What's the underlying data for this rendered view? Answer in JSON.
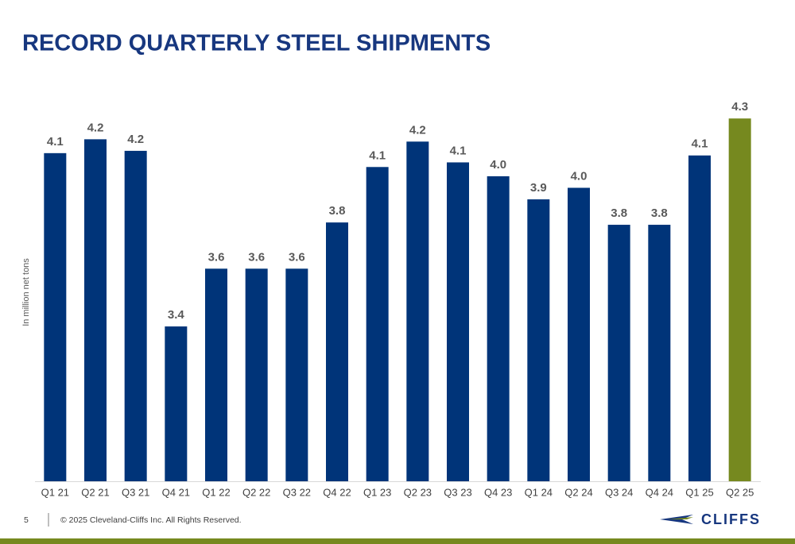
{
  "chart_data": {
    "type": "bar",
    "title": "RECORD QUARTERLY STEEL SHIPMENTS",
    "y_label": "In million net tons",
    "categories": [
      "Q1 21",
      "Q2 21",
      "Q3 21",
      "Q4 21",
      "Q1 22",
      "Q2 22",
      "Q3 22",
      "Q4 22",
      "Q1 23",
      "Q2 23",
      "Q3 23",
      "Q4 23",
      "Q1 24",
      "Q2 24",
      "Q3 24",
      "Q4 24",
      "Q1 25",
      "Q2 25"
    ],
    "values": [
      4.15,
      4.21,
      4.16,
      3.4,
      3.65,
      3.65,
      3.65,
      3.85,
      4.09,
      4.2,
      4.11,
      4.05,
      3.95,
      4.0,
      3.84,
      3.84,
      4.14,
      4.3
    ],
    "value_labels": [
      "4.1",
      "4.2",
      "4.2",
      "3.4",
      "3.6",
      "3.6",
      "3.6",
      "3.8",
      "4.1",
      "4.2",
      "4.1",
      "4.0",
      "3.9",
      "4.0",
      "3.8",
      "3.8",
      "4.1",
      "4.3"
    ],
    "colors": [
      "#003479",
      "#003479",
      "#003479",
      "#003479",
      "#003479",
      "#003479",
      "#003479",
      "#003479",
      "#003479",
      "#003479",
      "#003479",
      "#003479",
      "#003479",
      "#003479",
      "#003479",
      "#003479",
      "#003479",
      "#76891f"
    ],
    "ylim": [
      2.73,
      4.5
    ]
  },
  "footer": {
    "page_number": "5",
    "copyright": "© 2025 Cleveland-Cliffs Inc. All Rights Reserved.",
    "logo": "CLIFFS"
  }
}
